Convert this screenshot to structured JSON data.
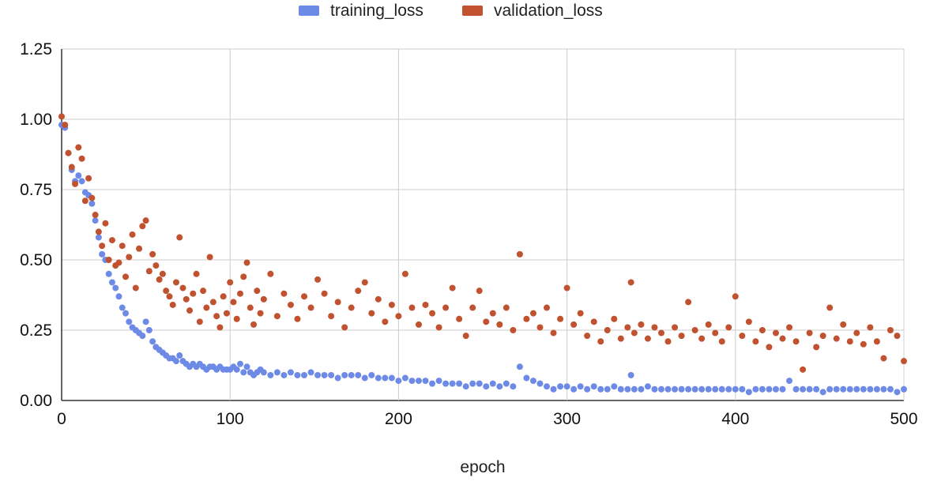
{
  "chart_data": {
    "type": "scatter",
    "xlabel": "epoch",
    "ylabel": "",
    "xlim": [
      0,
      500
    ],
    "ylim": [
      0,
      1.25
    ],
    "x_ticks": [
      "0",
      "100",
      "200",
      "300",
      "400",
      "500"
    ],
    "y_ticks": [
      "0.00",
      "0.25",
      "0.50",
      "0.75",
      "1.00",
      "1.25"
    ],
    "grid": true,
    "legend_position": "top",
    "series": [
      {
        "name": "training_loss",
        "color": "#6d8ae6",
        "points": [
          [
            0,
            0.98
          ],
          [
            2,
            0.97
          ],
          [
            4,
            0.88
          ],
          [
            6,
            0.82
          ],
          [
            8,
            0.78
          ],
          [
            10,
            0.8
          ],
          [
            12,
            0.78
          ],
          [
            14,
            0.74
          ],
          [
            16,
            0.73
          ],
          [
            18,
            0.7
          ],
          [
            20,
            0.64
          ],
          [
            22,
            0.58
          ],
          [
            24,
            0.52
          ],
          [
            26,
            0.5
          ],
          [
            28,
            0.45
          ],
          [
            30,
            0.42
          ],
          [
            32,
            0.4
          ],
          [
            34,
            0.37
          ],
          [
            36,
            0.33
          ],
          [
            38,
            0.31
          ],
          [
            40,
            0.28
          ],
          [
            42,
            0.26
          ],
          [
            44,
            0.25
          ],
          [
            46,
            0.24
          ],
          [
            48,
            0.23
          ],
          [
            50,
            0.28
          ],
          [
            52,
            0.25
          ],
          [
            54,
            0.21
          ],
          [
            56,
            0.19
          ],
          [
            58,
            0.18
          ],
          [
            60,
            0.17
          ],
          [
            62,
            0.16
          ],
          [
            64,
            0.15
          ],
          [
            66,
            0.15
          ],
          [
            68,
            0.14
          ],
          [
            70,
            0.16
          ],
          [
            72,
            0.14
          ],
          [
            74,
            0.13
          ],
          [
            76,
            0.12
          ],
          [
            78,
            0.13
          ],
          [
            80,
            0.12
          ],
          [
            82,
            0.13
          ],
          [
            84,
            0.12
          ],
          [
            86,
            0.11
          ],
          [
            88,
            0.12
          ],
          [
            90,
            0.12
          ],
          [
            92,
            0.11
          ],
          [
            94,
            0.12
          ],
          [
            96,
            0.11
          ],
          [
            98,
            0.11
          ],
          [
            100,
            0.11
          ],
          [
            102,
            0.12
          ],
          [
            104,
            0.11
          ],
          [
            106,
            0.13
          ],
          [
            108,
            0.1
          ],
          [
            110,
            0.12
          ],
          [
            112,
            0.1
          ],
          [
            114,
            0.09
          ],
          [
            116,
            0.1
          ],
          [
            118,
            0.11
          ],
          [
            120,
            0.1
          ],
          [
            124,
            0.09
          ],
          [
            128,
            0.1
          ],
          [
            132,
            0.09
          ],
          [
            136,
            0.1
          ],
          [
            140,
            0.09
          ],
          [
            144,
            0.09
          ],
          [
            148,
            0.1
          ],
          [
            152,
            0.09
          ],
          [
            156,
            0.09
          ],
          [
            160,
            0.09
          ],
          [
            164,
            0.08
          ],
          [
            168,
            0.09
          ],
          [
            172,
            0.09
          ],
          [
            176,
            0.09
          ],
          [
            180,
            0.08
          ],
          [
            184,
            0.09
          ],
          [
            188,
            0.08
          ],
          [
            192,
            0.08
          ],
          [
            196,
            0.08
          ],
          [
            200,
            0.07
          ],
          [
            204,
            0.08
          ],
          [
            208,
            0.07
          ],
          [
            212,
            0.07
          ],
          [
            216,
            0.07
          ],
          [
            220,
            0.06
          ],
          [
            224,
            0.07
          ],
          [
            228,
            0.06
          ],
          [
            232,
            0.06
          ],
          [
            236,
            0.06
          ],
          [
            240,
            0.05
          ],
          [
            244,
            0.06
          ],
          [
            248,
            0.06
          ],
          [
            252,
            0.05
          ],
          [
            256,
            0.06
          ],
          [
            260,
            0.05
          ],
          [
            264,
            0.06
          ],
          [
            268,
            0.05
          ],
          [
            272,
            0.12
          ],
          [
            276,
            0.08
          ],
          [
            280,
            0.07
          ],
          [
            284,
            0.06
          ],
          [
            288,
            0.05
          ],
          [
            292,
            0.04
          ],
          [
            296,
            0.05
          ],
          [
            300,
            0.05
          ],
          [
            304,
            0.04
          ],
          [
            308,
            0.05
          ],
          [
            312,
            0.04
          ],
          [
            316,
            0.05
          ],
          [
            320,
            0.04
          ],
          [
            324,
            0.04
          ],
          [
            328,
            0.05
          ],
          [
            332,
            0.04
          ],
          [
            336,
            0.04
          ],
          [
            338,
            0.09
          ],
          [
            340,
            0.04
          ],
          [
            344,
            0.04
          ],
          [
            348,
            0.05
          ],
          [
            352,
            0.04
          ],
          [
            356,
            0.04
          ],
          [
            360,
            0.04
          ],
          [
            364,
            0.04
          ],
          [
            368,
            0.04
          ],
          [
            372,
            0.04
          ],
          [
            376,
            0.04
          ],
          [
            380,
            0.04
          ],
          [
            384,
            0.04
          ],
          [
            388,
            0.04
          ],
          [
            392,
            0.04
          ],
          [
            396,
            0.04
          ],
          [
            400,
            0.04
          ],
          [
            404,
            0.04
          ],
          [
            408,
            0.03
          ],
          [
            412,
            0.04
          ],
          [
            416,
            0.04
          ],
          [
            420,
            0.04
          ],
          [
            424,
            0.04
          ],
          [
            428,
            0.04
          ],
          [
            432,
            0.07
          ],
          [
            436,
            0.04
          ],
          [
            440,
            0.04
          ],
          [
            444,
            0.04
          ],
          [
            448,
            0.04
          ],
          [
            452,
            0.03
          ],
          [
            456,
            0.04
          ],
          [
            460,
            0.04
          ],
          [
            464,
            0.04
          ],
          [
            468,
            0.04
          ],
          [
            472,
            0.04
          ],
          [
            476,
            0.04
          ],
          [
            480,
            0.04
          ],
          [
            484,
            0.04
          ],
          [
            488,
            0.04
          ],
          [
            492,
            0.04
          ],
          [
            496,
            0.03
          ],
          [
            500,
            0.04
          ]
        ]
      },
      {
        "name": "validation_loss",
        "color": "#c0522f",
        "points": [
          [
            0,
            1.01
          ],
          [
            2,
            0.98
          ],
          [
            4,
            0.88
          ],
          [
            6,
            0.83
          ],
          [
            8,
            0.77
          ],
          [
            10,
            0.9
          ],
          [
            12,
            0.86
          ],
          [
            14,
            0.71
          ],
          [
            16,
            0.79
          ],
          [
            18,
            0.72
          ],
          [
            20,
            0.66
          ],
          [
            22,
            0.6
          ],
          [
            24,
            0.55
          ],
          [
            26,
            0.63
          ],
          [
            28,
            0.5
          ],
          [
            30,
            0.57
          ],
          [
            32,
            0.48
          ],
          [
            34,
            0.49
          ],
          [
            36,
            0.55
          ],
          [
            38,
            0.44
          ],
          [
            40,
            0.51
          ],
          [
            42,
            0.59
          ],
          [
            44,
            0.4
          ],
          [
            46,
            0.54
          ],
          [
            48,
            0.62
          ],
          [
            50,
            0.64
          ],
          [
            52,
            0.46
          ],
          [
            54,
            0.52
          ],
          [
            56,
            0.48
          ],
          [
            58,
            0.43
          ],
          [
            60,
            0.45
          ],
          [
            62,
            0.39
          ],
          [
            64,
            0.37
          ],
          [
            66,
            0.34
          ],
          [
            68,
            0.42
          ],
          [
            70,
            0.58
          ],
          [
            72,
            0.4
          ],
          [
            74,
            0.36
          ],
          [
            76,
            0.32
          ],
          [
            78,
            0.38
          ],
          [
            80,
            0.45
          ],
          [
            82,
            0.28
          ],
          [
            84,
            0.39
          ],
          [
            86,
            0.33
          ],
          [
            88,
            0.51
          ],
          [
            90,
            0.35
          ],
          [
            92,
            0.3
          ],
          [
            94,
            0.26
          ],
          [
            96,
            0.37
          ],
          [
            98,
            0.31
          ],
          [
            100,
            0.42
          ],
          [
            102,
            0.35
          ],
          [
            104,
            0.29
          ],
          [
            106,
            0.38
          ],
          [
            108,
            0.44
          ],
          [
            110,
            0.49
          ],
          [
            112,
            0.33
          ],
          [
            114,
            0.27
          ],
          [
            116,
            0.39
          ],
          [
            118,
            0.31
          ],
          [
            120,
            0.36
          ],
          [
            124,
            0.45
          ],
          [
            128,
            0.3
          ],
          [
            132,
            0.38
          ],
          [
            136,
            0.34
          ],
          [
            140,
            0.29
          ],
          [
            144,
            0.37
          ],
          [
            148,
            0.33
          ],
          [
            152,
            0.43
          ],
          [
            156,
            0.38
          ],
          [
            160,
            0.3
          ],
          [
            164,
            0.35
          ],
          [
            168,
            0.26
          ],
          [
            172,
            0.33
          ],
          [
            176,
            0.39
          ],
          [
            180,
            0.42
          ],
          [
            184,
            0.31
          ],
          [
            188,
            0.36
          ],
          [
            192,
            0.28
          ],
          [
            196,
            0.34
          ],
          [
            200,
            0.3
          ],
          [
            204,
            0.45
          ],
          [
            208,
            0.33
          ],
          [
            212,
            0.27
          ],
          [
            216,
            0.34
          ],
          [
            220,
            0.31
          ],
          [
            224,
            0.26
          ],
          [
            228,
            0.33
          ],
          [
            232,
            0.4
          ],
          [
            236,
            0.29
          ],
          [
            240,
            0.23
          ],
          [
            244,
            0.33
          ],
          [
            248,
            0.39
          ],
          [
            252,
            0.28
          ],
          [
            256,
            0.31
          ],
          [
            260,
            0.27
          ],
          [
            264,
            0.33
          ],
          [
            268,
            0.25
          ],
          [
            272,
            0.52
          ],
          [
            276,
            0.29
          ],
          [
            280,
            0.31
          ],
          [
            284,
            0.26
          ],
          [
            288,
            0.33
          ],
          [
            292,
            0.24
          ],
          [
            296,
            0.29
          ],
          [
            300,
            0.4
          ],
          [
            304,
            0.27
          ],
          [
            308,
            0.31
          ],
          [
            312,
            0.23
          ],
          [
            316,
            0.28
          ],
          [
            320,
            0.21
          ],
          [
            324,
            0.25
          ],
          [
            328,
            0.29
          ],
          [
            332,
            0.22
          ],
          [
            336,
            0.26
          ],
          [
            338,
            0.42
          ],
          [
            340,
            0.24
          ],
          [
            344,
            0.27
          ],
          [
            348,
            0.22
          ],
          [
            352,
            0.26
          ],
          [
            356,
            0.24
          ],
          [
            360,
            0.21
          ],
          [
            364,
            0.26
          ],
          [
            368,
            0.23
          ],
          [
            372,
            0.35
          ],
          [
            376,
            0.25
          ],
          [
            380,
            0.22
          ],
          [
            384,
            0.27
          ],
          [
            388,
            0.24
          ],
          [
            392,
            0.21
          ],
          [
            396,
            0.26
          ],
          [
            400,
            0.37
          ],
          [
            404,
            0.23
          ],
          [
            408,
            0.28
          ],
          [
            412,
            0.21
          ],
          [
            416,
            0.25
          ],
          [
            420,
            0.19
          ],
          [
            424,
            0.24
          ],
          [
            428,
            0.22
          ],
          [
            432,
            0.26
          ],
          [
            436,
            0.21
          ],
          [
            440,
            0.11
          ],
          [
            444,
            0.24
          ],
          [
            448,
            0.19
          ],
          [
            452,
            0.23
          ],
          [
            456,
            0.33
          ],
          [
            460,
            0.22
          ],
          [
            464,
            0.27
          ],
          [
            468,
            0.21
          ],
          [
            472,
            0.24
          ],
          [
            476,
            0.2
          ],
          [
            480,
            0.26
          ],
          [
            484,
            0.21
          ],
          [
            488,
            0.15
          ],
          [
            492,
            0.25
          ],
          [
            496,
            0.23
          ],
          [
            500,
            0.14
          ]
        ]
      }
    ]
  }
}
